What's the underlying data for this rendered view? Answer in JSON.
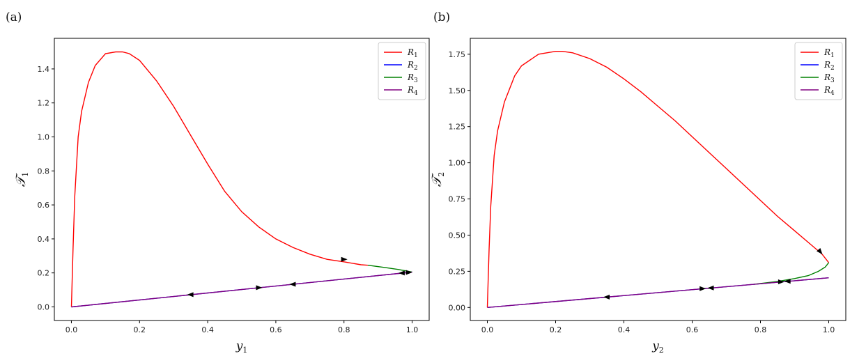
{
  "chart_data": [
    {
      "panel_label": "(a)",
      "type": "line",
      "xlabel": "y",
      "xlabel_sub": "1",
      "ylabel": "𝒯",
      "ylabel_sub": "1",
      "xlim": [
        -0.05,
        1.05
      ],
      "ylim": [
        -0.08,
        1.58
      ],
      "xticks": [
        0.0,
        0.2,
        0.4,
        0.6,
        0.8,
        1.0
      ],
      "xtick_labels": [
        "0.0",
        "0.2",
        "0.4",
        "0.6",
        "0.8",
        "1.0"
      ],
      "yticks": [
        0.0,
        0.2,
        0.4,
        0.6,
        0.8,
        1.0,
        1.2,
        1.4
      ],
      "ytick_labels": [
        "0.0",
        "0.2",
        "0.4",
        "0.6",
        "0.8",
        "1.0",
        "1.2",
        "1.4"
      ],
      "legend_position": "top-right",
      "grid": false,
      "series": [
        {
          "name": "R",
          "sub": "1",
          "color": "#ff0000",
          "x": [
            0.0,
            0.005,
            0.01,
            0.02,
            0.03,
            0.05,
            0.07,
            0.1,
            0.13,
            0.15,
            0.17,
            0.2,
            0.25,
            0.3,
            0.35,
            0.4,
            0.45,
            0.5,
            0.55,
            0.6,
            0.65,
            0.7,
            0.75,
            0.8,
            0.85,
            0.87
          ],
          "y": [
            0.0,
            0.35,
            0.65,
            1.0,
            1.15,
            1.32,
            1.42,
            1.49,
            1.5,
            1.5,
            1.49,
            1.45,
            1.33,
            1.18,
            1.01,
            0.84,
            0.68,
            0.56,
            0.47,
            0.4,
            0.35,
            0.31,
            0.28,
            0.265,
            0.248,
            0.245
          ]
        },
        {
          "name": "R",
          "sub": "2",
          "color": "#0000ff",
          "x": [
            0.0,
            1.0
          ],
          "y": [
            0.0,
            0.205
          ]
        },
        {
          "name": "R",
          "sub": "3",
          "color": "#008000",
          "x": [
            0.87,
            0.92,
            0.96,
            1.0
          ],
          "y": [
            0.245,
            0.232,
            0.22,
            0.205
          ]
        },
        {
          "name": "R",
          "sub": "4",
          "color": "#800080",
          "x": [
            0.0,
            1.0
          ],
          "y": [
            0.0,
            0.205
          ]
        }
      ],
      "arrows": [
        {
          "x": 0.8,
          "y": 0.28,
          "dir": "right"
        },
        {
          "x": 0.35,
          "y": 0.072,
          "dir": "left"
        },
        {
          "x": 0.55,
          "y": 0.113,
          "dir": "right"
        },
        {
          "x": 0.65,
          "y": 0.133,
          "dir": "left"
        },
        {
          "x": 0.97,
          "y": 0.199,
          "dir": "left"
        },
        {
          "x": 0.99,
          "y": 0.203,
          "dir": "right"
        }
      ]
    },
    {
      "panel_label": "(b)",
      "type": "line",
      "xlabel": "y",
      "xlabel_sub": "2",
      "ylabel": "𝒯",
      "ylabel_sub": "2",
      "xlim": [
        -0.05,
        1.05
      ],
      "ylim": [
        -0.09,
        1.86
      ],
      "xticks": [
        0.0,
        0.2,
        0.4,
        0.6,
        0.8,
        1.0
      ],
      "xtick_labels": [
        "0.0",
        "0.2",
        "0.4",
        "0.6",
        "0.8",
        "1.0"
      ],
      "yticks": [
        0.0,
        0.25,
        0.5,
        0.75,
        1.0,
        1.25,
        1.5,
        1.75
      ],
      "ytick_labels": [
        "0.00",
        "0.25",
        "0.50",
        "0.75",
        "1.00",
        "1.25",
        "1.50",
        "1.75"
      ],
      "legend_position": "top-right",
      "grid": false,
      "series": [
        {
          "name": "R",
          "sub": "1",
          "color": "#ff0000",
          "x": [
            0.0,
            0.005,
            0.01,
            0.02,
            0.03,
            0.05,
            0.08,
            0.1,
            0.15,
            0.2,
            0.22,
            0.25,
            0.3,
            0.35,
            0.4,
            0.45,
            0.5,
            0.55,
            0.6,
            0.65,
            0.7,
            0.75,
            0.8,
            0.85,
            0.9,
            0.95,
            0.98,
            1.0
          ],
          "y": [
            0.0,
            0.4,
            0.7,
            1.05,
            1.22,
            1.42,
            1.6,
            1.67,
            1.75,
            1.77,
            1.77,
            1.76,
            1.72,
            1.66,
            1.58,
            1.49,
            1.39,
            1.29,
            1.18,
            1.07,
            0.96,
            0.85,
            0.74,
            0.63,
            0.53,
            0.43,
            0.37,
            0.31
          ]
        },
        {
          "name": "R",
          "sub": "2",
          "color": "#0000ff",
          "x": [
            0.0,
            1.0
          ],
          "y": [
            0.0,
            0.205
          ]
        },
        {
          "name": "R",
          "sub": "3",
          "color": "#008000",
          "x": [
            0.78,
            0.85,
            0.9,
            0.94,
            0.97,
            0.99,
            1.0
          ],
          "y": [
            0.16,
            0.18,
            0.2,
            0.22,
            0.25,
            0.28,
            0.31
          ]
        },
        {
          "name": "R",
          "sub": "4",
          "color": "#800080",
          "x": [
            0.0,
            1.0
          ],
          "y": [
            0.0,
            0.205
          ]
        }
      ],
      "arrows": [
        {
          "x": 0.975,
          "y": 0.385,
          "dir": "down-right"
        },
        {
          "x": 0.35,
          "y": 0.072,
          "dir": "left"
        },
        {
          "x": 0.63,
          "y": 0.13,
          "dir": "right"
        },
        {
          "x": 0.655,
          "y": 0.135,
          "dir": "left"
        },
        {
          "x": 0.86,
          "y": 0.177,
          "dir": "right"
        },
        {
          "x": 0.88,
          "y": 0.181,
          "dir": "left"
        }
      ]
    }
  ]
}
